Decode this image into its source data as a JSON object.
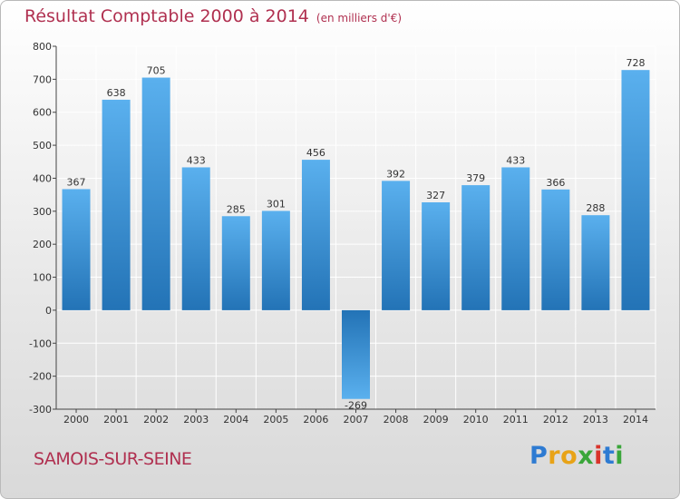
{
  "header": {
    "title": "Résultat Comptable 2000 à 2014",
    "unit": "(en milliers d'€)"
  },
  "footer": {
    "city": "SAMOIS-SUR-SEINE",
    "logo_letters": [
      "P",
      "r",
      "o",
      "x",
      "i",
      "t",
      "i"
    ],
    "logo_colors": [
      "#2e7bd2",
      "#e8a317",
      "#e8a317",
      "#3aa63a",
      "#d9342b",
      "#2e7bd2",
      "#3aa63a"
    ]
  },
  "colors": {
    "bar_light": "#5ab0ee",
    "bar_dark": "#2373b6",
    "grid": "#ffffff",
    "axis": "#444444"
  },
  "chart_data": {
    "type": "bar",
    "title": "Résultat Comptable 2000 à 2014",
    "xlabel": "",
    "ylabel": "(en milliers d'€)",
    "categories": [
      "2000",
      "2001",
      "2002",
      "2003",
      "2004",
      "2005",
      "2006",
      "2007",
      "2008",
      "2009",
      "2010",
      "2011",
      "2012",
      "2013",
      "2014"
    ],
    "values": [
      367,
      638,
      705,
      433,
      285,
      301,
      456,
      -269,
      392,
      327,
      379,
      433,
      366,
      288,
      728
    ],
    "ylim": [
      -300,
      800
    ],
    "yticks": [
      800,
      700,
      600,
      500,
      400,
      300,
      200,
      100,
      0,
      -100,
      -200,
      -300
    ],
    "grid": true
  }
}
